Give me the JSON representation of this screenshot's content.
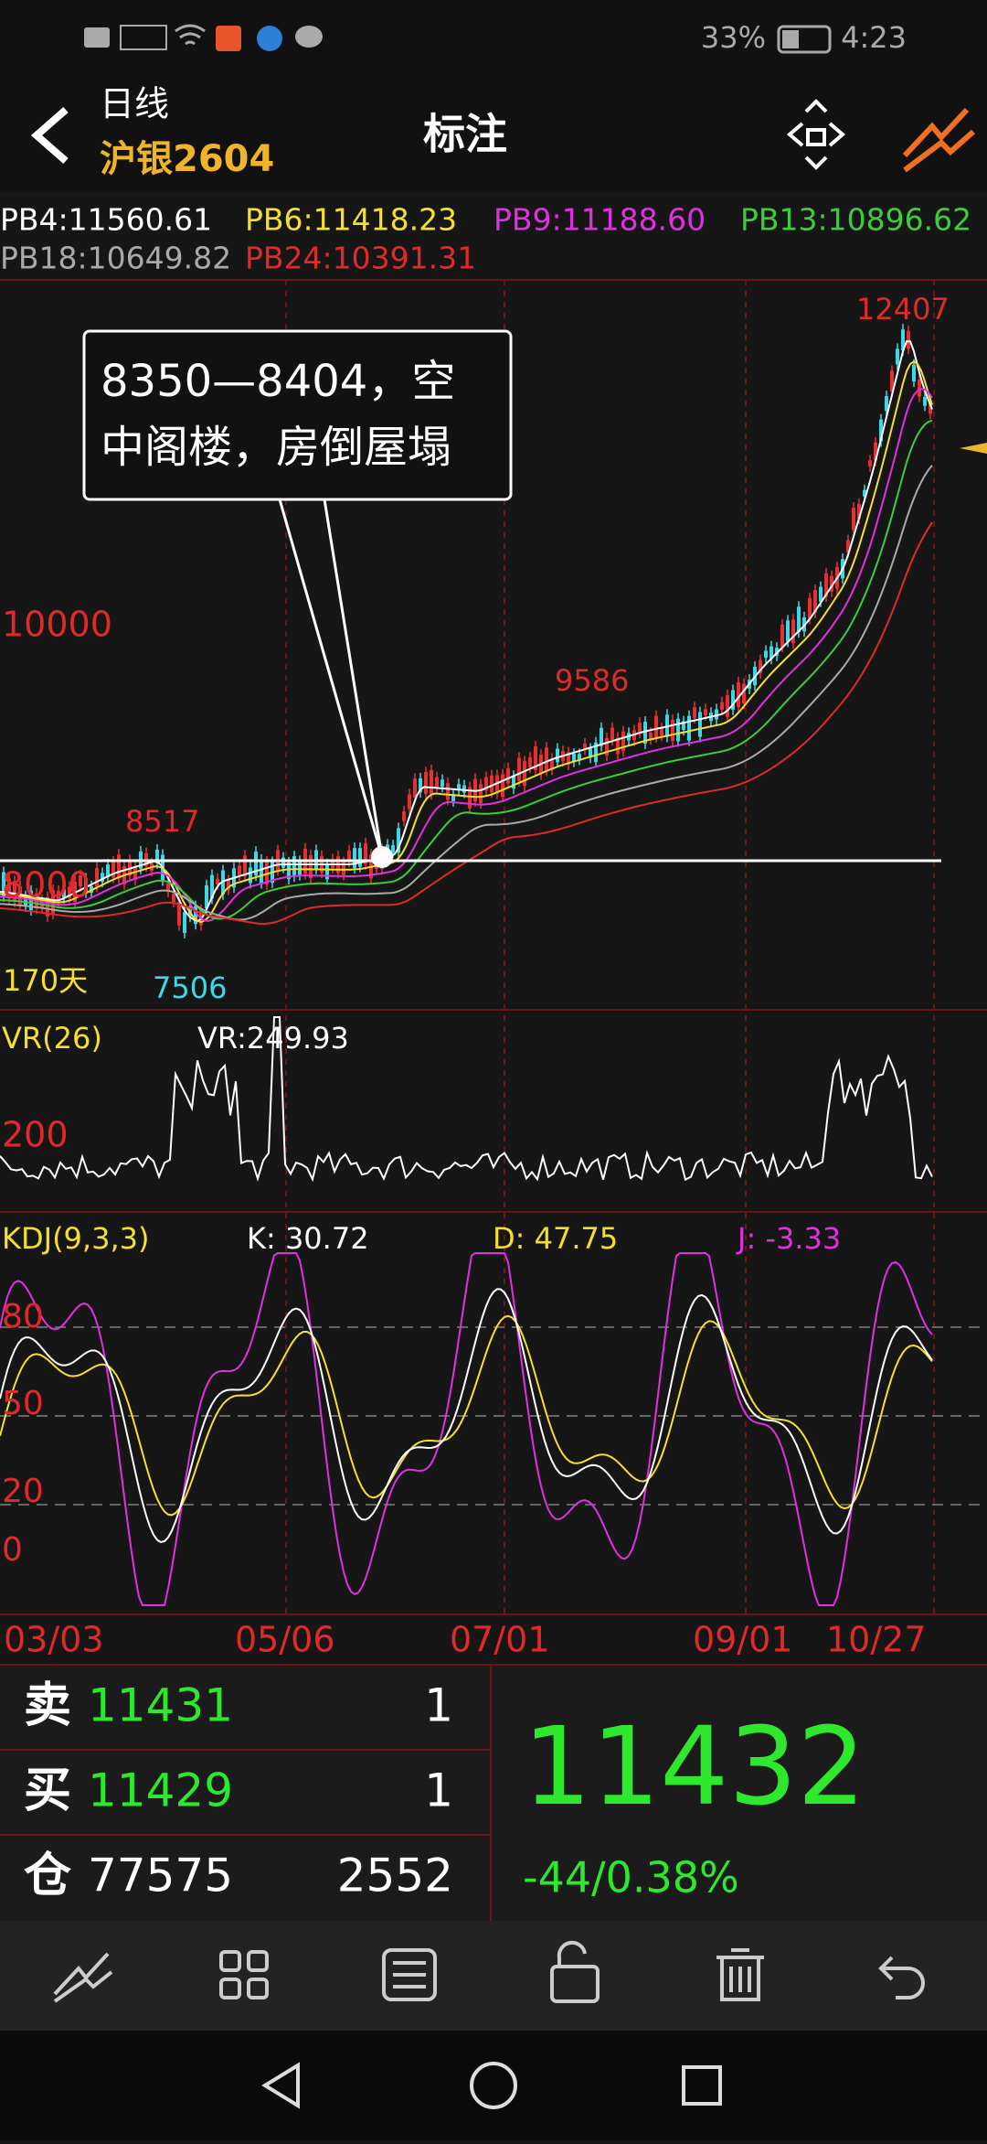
{
  "status_bar": {
    "battery": "33%",
    "time": "4:23"
  },
  "header": {
    "period": "日线",
    "symbol": "沪银2604",
    "title": "标注"
  },
  "indicators": [
    "PB4:11560.61",
    "PB6:11418.23",
    "PB9:11188.60",
    "PB13:10896.62",
    "PB18:10649.82",
    "PB24:10391.31"
  ],
  "main_chart": {
    "price_labels": [
      "10000",
      "8000"
    ],
    "high_label": "12407",
    "mid_label": "9586",
    "early_high_label": "8517",
    "low_label": "7506",
    "days": "170天",
    "note": [
      "8350—8404，空",
      "中阁楼，房倒屋塌"
    ]
  },
  "vr_panel": {
    "name": "VR(26)",
    "value": "VR:249.93",
    "level": "200"
  },
  "kdj_panel": {
    "name": "KDJ(9,3,3)",
    "k": "K: 30.72",
    "d": "D: 47.75",
    "j": "J: -3.33",
    "levels": [
      "80",
      "50",
      "20",
      "0"
    ]
  },
  "dates": [
    "03/03",
    "05/06",
    "07/01",
    "09/01",
    "10/27"
  ],
  "quote": {
    "rows": [
      {
        "label": "卖",
        "price": "11431",
        "volume": "1"
      },
      {
        "label": "买",
        "price": "11429",
        "volume": "1"
      },
      {
        "label": "仓",
        "price": "77575",
        "volume": "2552"
      }
    ],
    "last": "11432",
    "change": "-44/0.38%"
  }
}
